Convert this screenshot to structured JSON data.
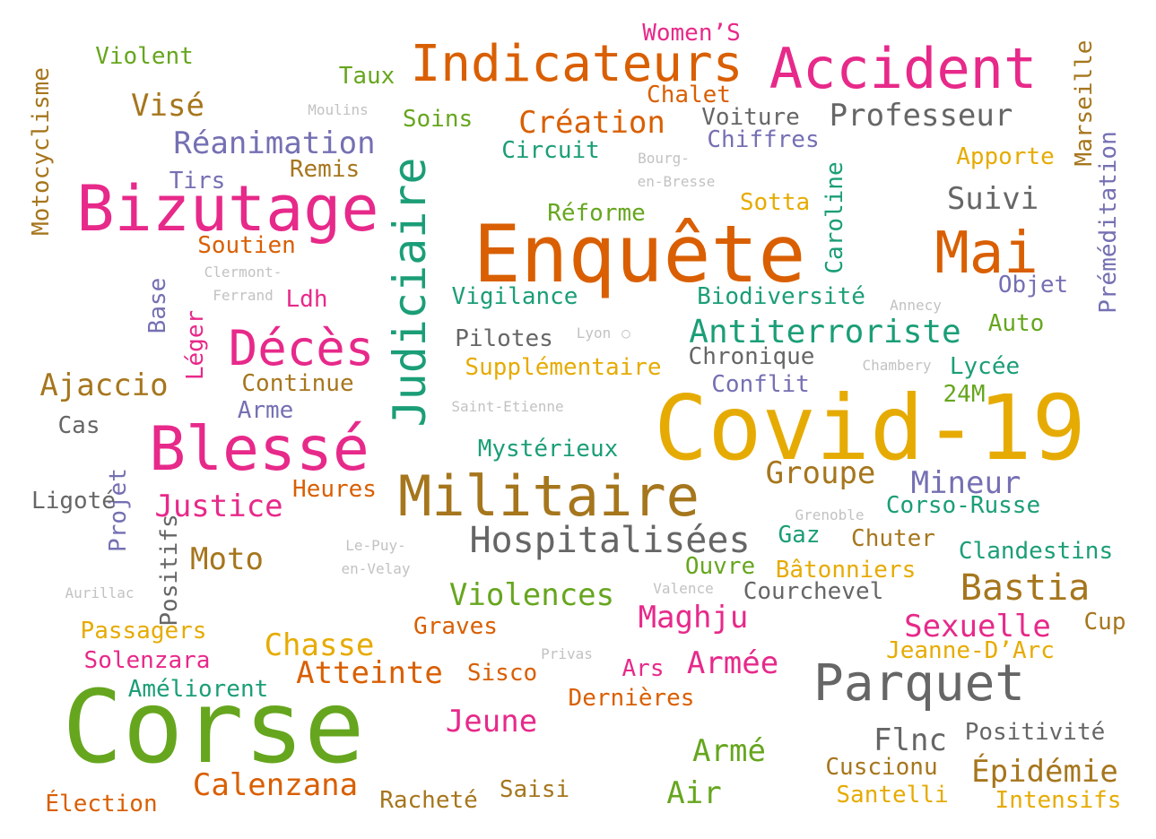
{
  "colors": {
    "green": "#66a61e",
    "orange": "#d95f02",
    "pink": "#e7298a",
    "teal": "#1b9e77",
    "purple": "#7570b3",
    "mustard": "#e6ab02",
    "brown": "#a6761d",
    "gray": "#666666",
    "light": "#c2c2c2"
  },
  "words": [
    {
      "text": "Corse",
      "color": "green"
    },
    {
      "text": "Covid-19",
      "color": "mustard"
    },
    {
      "text": "Enquête",
      "color": "orange"
    },
    {
      "text": "Bizutage",
      "color": "pink"
    },
    {
      "text": "Militaire",
      "color": "brown"
    },
    {
      "text": "Blessé",
      "color": "pink"
    },
    {
      "text": "Judiciaire",
      "color": "teal"
    },
    {
      "text": "Accident",
      "color": "pink"
    },
    {
      "text": "Indicateurs",
      "color": "orange"
    },
    {
      "text": "Parquet",
      "color": "gray"
    },
    {
      "text": "Mai",
      "color": "orange"
    },
    {
      "text": "Décès",
      "color": "pink"
    },
    {
      "text": "Hospitalisées",
      "color": "gray"
    },
    {
      "text": "Antiterroriste",
      "color": "teal"
    },
    {
      "text": "Professeur",
      "color": "gray"
    },
    {
      "text": "Bastia",
      "color": "brown"
    },
    {
      "text": "Réanimation",
      "color": "purple"
    },
    {
      "text": "Création",
      "color": "orange"
    },
    {
      "text": "Violences",
      "color": "green"
    },
    {
      "text": "Atteinte",
      "color": "orange"
    },
    {
      "text": "Épidémie",
      "color": "brown"
    },
    {
      "text": "Sexuelle",
      "color": "pink"
    },
    {
      "text": "Maghju",
      "color": "pink"
    },
    {
      "text": "Calenzana",
      "color": "orange"
    },
    {
      "text": "Justice",
      "color": "pink"
    },
    {
      "text": "Ajaccio",
      "color": "brown"
    },
    {
      "text": "Groupe",
      "color": "brown"
    },
    {
      "text": "Mineur",
      "color": "purple"
    },
    {
      "text": "Chasse",
      "color": "mustard"
    },
    {
      "text": "Jeune",
      "color": "pink"
    },
    {
      "text": "Suivi",
      "color": "gray"
    },
    {
      "text": "Visé",
      "color": "brown"
    },
    {
      "text": "Moto",
      "color": "brown"
    },
    {
      "text": "Armé",
      "color": "green"
    },
    {
      "text": "Air",
      "color": "green"
    },
    {
      "text": "Flnc",
      "color": "gray"
    },
    {
      "text": "Armée",
      "color": "pink"
    },
    {
      "text": "Motocyclisme",
      "color": "brown"
    },
    {
      "text": "Caroline",
      "color": "teal"
    },
    {
      "text": "Préméditation",
      "color": "purple"
    },
    {
      "text": "Marseille",
      "color": "brown"
    },
    {
      "text": "Biodiversité",
      "color": "teal"
    },
    {
      "text": "Supplémentaire",
      "color": "mustard"
    },
    {
      "text": "Chiffres",
      "color": "purple"
    },
    {
      "text": "Voiture",
      "color": "gray"
    },
    {
      "text": "Circuit",
      "color": "teal"
    },
    {
      "text": "Vigilance",
      "color": "teal"
    },
    {
      "text": "Pilotes",
      "color": "gray"
    },
    {
      "text": "Chronique",
      "color": "gray"
    },
    {
      "text": "Conflit",
      "color": "purple"
    },
    {
      "text": "Mystérieux",
      "color": "teal"
    },
    {
      "text": "Corso-Russe",
      "color": "teal"
    },
    {
      "text": "Clandestins",
      "color": "teal"
    },
    {
      "text": "Bâtonniers",
      "color": "mustard"
    },
    {
      "text": "Courchevel",
      "color": "gray"
    },
    {
      "text": "Jeanne-D’Arc",
      "color": "mustard"
    },
    {
      "text": "Positivité",
      "color": "gray"
    },
    {
      "text": "Cuscionu",
      "color": "brown"
    },
    {
      "text": "Santelli",
      "color": "mustard"
    },
    {
      "text": "Intensifs",
      "color": "mustard"
    },
    {
      "text": "Dernières",
      "color": "orange"
    },
    {
      "text": "Améliorent",
      "color": "teal"
    },
    {
      "text": "Solenzara",
      "color": "pink"
    },
    {
      "text": "Passagers",
      "color": "mustard"
    },
    {
      "text": "Élection",
      "color": "orange"
    },
    {
      "text": "Racheté",
      "color": "brown"
    },
    {
      "text": "Saisi",
      "color": "brown"
    },
    {
      "text": "Sisco",
      "color": "orange"
    },
    {
      "text": "Graves",
      "color": "orange"
    },
    {
      "text": "Ars",
      "color": "pink"
    },
    {
      "text": "Ouvre",
      "color": "green"
    },
    {
      "text": "Gaz",
      "color": "teal"
    },
    {
      "text": "Chuter",
      "color": "brown"
    },
    {
      "text": "Cup",
      "color": "brown"
    },
    {
      "text": "Lycée",
      "color": "teal"
    },
    {
      "text": "24M",
      "color": "green"
    },
    {
      "text": "Auto",
      "color": "green"
    },
    {
      "text": "Objet",
      "color": "purple"
    },
    {
      "text": "Apporte",
      "color": "mustard"
    },
    {
      "text": "Sotta",
      "color": "mustard"
    },
    {
      "text": "Réforme",
      "color": "green"
    },
    {
      "text": "Soins",
      "color": "green"
    },
    {
      "text": "Taux",
      "color": "green"
    },
    {
      "text": "Chalet",
      "color": "orange"
    },
    {
      "text": "Women’S",
      "color": "pink"
    },
    {
      "text": "Violent",
      "color": "green"
    },
    {
      "text": "Remis",
      "color": "brown"
    },
    {
      "text": "Tirs",
      "color": "purple"
    },
    {
      "text": "Soutien",
      "color": "orange"
    },
    {
      "text": "Ldh",
      "color": "pink"
    },
    {
      "text": "Continue",
      "color": "brown"
    },
    {
      "text": "Arme",
      "color": "purple"
    },
    {
      "text": "Cas",
      "color": "gray"
    },
    {
      "text": "Base",
      "color": "gray"
    },
    {
      "text": "Léger",
      "color": "orange"
    },
    {
      "text": "Projet",
      "color": "purple"
    },
    {
      "text": "Positifs",
      "color": "pink"
    },
    {
      "text": "Ligoté",
      "color": "purple"
    },
    {
      "text": "Heures",
      "color": "gray"
    },
    {
      "text": "Moulins",
      "color": "light"
    },
    {
      "text": "Bourg-",
      "color": "light"
    },
    {
      "text": "en-Bresse",
      "color": "light"
    },
    {
      "text": "Clermont-",
      "color": "light"
    },
    {
      "text": "Ferrand",
      "color": "light"
    },
    {
      "text": "Annecy",
      "color": "light"
    },
    {
      "text": "Lyon",
      "color": "light"
    },
    {
      "text": "Chambery",
      "color": "light"
    },
    {
      "text": "Saint-Etienne",
      "color": "light"
    },
    {
      "text": "Grenoble",
      "color": "light"
    },
    {
      "text": "Le-Puy-",
      "color": "light"
    },
    {
      "text": "en-Velay",
      "color": "light"
    },
    {
      "text": "Valence",
      "color": "light"
    },
    {
      "text": "Aurillac",
      "color": "light"
    },
    {
      "text": "Privas",
      "color": "light"
    }
  ]
}
